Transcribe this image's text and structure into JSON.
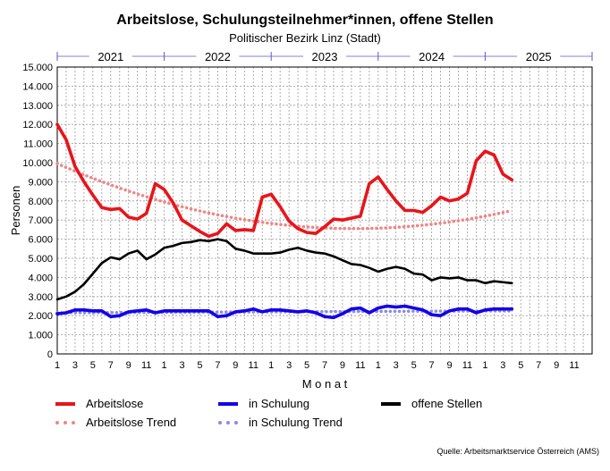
{
  "chart_data": {
    "type": "line",
    "title": "Arbeitslose, Schulungsteilnehmer*innen, offene Stellen",
    "subtitle": "Politischer Bezirk Linz (Stadt)",
    "xlabel": "M o n a t",
    "ylabel": "Personen",
    "ylim": [
      0,
      15000
    ],
    "yticks": [
      "0",
      "1.000",
      "2.000",
      "3.000",
      "4.000",
      "5.000",
      "6.000",
      "7.000",
      "8.000",
      "9.000",
      "10.000",
      "11.000",
      "12.000",
      "13.000",
      "14.000",
      "15.000"
    ],
    "year_labels": [
      "2021",
      "2022",
      "2023",
      "2024",
      "2025"
    ],
    "xtick_labels": [
      "1",
      "3",
      "5",
      "7",
      "9",
      "11",
      "1",
      "3",
      "5",
      "7",
      "9",
      "11",
      "1",
      "3",
      "5",
      "7",
      "9",
      "11",
      "1",
      "3",
      "5",
      "7",
      "9",
      "11",
      "1",
      "3",
      "5",
      "7",
      "9",
      "11"
    ],
    "months_total": 60,
    "series": [
      {
        "name": "Arbeitslose",
        "color": "#e8141b",
        "style": "solid",
        "values": [
          12000,
          11200,
          9800,
          9000,
          8300,
          7650,
          7550,
          7600,
          7150,
          7050,
          7350,
          8900,
          8600,
          7900,
          7000,
          6700,
          6400,
          6150,
          6300,
          6800,
          6450,
          6500,
          6450,
          8200,
          8350,
          7700,
          6950,
          6550,
          6350,
          6300,
          6650,
          7050,
          7000,
          7100,
          7200,
          8900,
          9250,
          8600,
          8000,
          7500,
          7500,
          7400,
          7750,
          8200,
          8000,
          8100,
          8400,
          10100,
          10600,
          10400,
          9400,
          9100
        ]
      },
      {
        "name": "in Schulung",
        "color": "#1400e6",
        "style": "solid",
        "values": [
          2100,
          2150,
          2300,
          2300,
          2250,
          2250,
          1950,
          2000,
          2200,
          2250,
          2300,
          2150,
          2250,
          2250,
          2250,
          2250,
          2250,
          2250,
          1950,
          2000,
          2200,
          2250,
          2350,
          2200,
          2300,
          2300,
          2250,
          2200,
          2250,
          2150,
          1950,
          1900,
          2100,
          2350,
          2400,
          2150,
          2400,
          2500,
          2450,
          2500,
          2400,
          2300,
          2050,
          2000,
          2250,
          2350,
          2350,
          2150,
          2300,
          2350,
          2350,
          2350
        ]
      },
      {
        "name": "offene Stellen",
        "color": "#000000",
        "style": "solid",
        "values": [
          2850,
          3000,
          3250,
          3650,
          4200,
          4750,
          5050,
          4950,
          5250,
          5400,
          4950,
          5200,
          5550,
          5650,
          5800,
          5850,
          5950,
          5900,
          6000,
          5900,
          5500,
          5400,
          5250,
          5250,
          5250,
          5300,
          5450,
          5550,
          5400,
          5300,
          5250,
          5100,
          4900,
          4700,
          4650,
          4500,
          4300,
          4450,
          4550,
          4450,
          4200,
          4150,
          3850,
          4000,
          3950,
          4000,
          3850,
          3850,
          3700,
          3800,
          3750,
          3700
        ]
      },
      {
        "name": "Arbeitslose Trend",
        "color": "#f08585",
        "style": "dotted",
        "values": [
          9950,
          9749,
          9555,
          9366,
          9184,
          9008,
          8838,
          8674,
          8516,
          8364,
          8219,
          8079,
          7946,
          7819,
          7697,
          7582,
          7473,
          7370,
          7274,
          7183,
          7098,
          7020,
          6947,
          6881,
          6821,
          6767,
          6719,
          6677,
          6641,
          6611,
          6588,
          6570,
          6559,
          6553,
          6554,
          6561,
          6574,
          6593,
          6618,
          6649,
          6686,
          6730,
          6779,
          6835,
          6896,
          6964,
          7038,
          7118,
          7203,
          7295,
          7393,
          7497
        ]
      },
      {
        "name": "in Schulung Trend",
        "color": "#8a8ae8",
        "style": "dotted",
        "values": [
          2150,
          2152,
          2154,
          2156,
          2158,
          2160,
          2162,
          2164,
          2166,
          2168,
          2170,
          2172,
          2174,
          2176,
          2178,
          2180,
          2182,
          2184,
          2186,
          2188,
          2190,
          2192,
          2194,
          2196,
          2198,
          2200,
          2202,
          2204,
          2206,
          2208,
          2210,
          2212,
          2214,
          2216,
          2218,
          2220,
          2222,
          2224,
          2226,
          2228,
          2230,
          2232,
          2234,
          2236,
          2238,
          2240,
          2242,
          2244,
          2246,
          2248,
          2250,
          2252
        ]
      }
    ],
    "legend": [
      "Arbeitslose",
      "in Schulung",
      "offene Stellen",
      "Arbeitslose Trend",
      "in Schulung Trend"
    ],
    "source": "Quelle: Arbeitsmarktservice Österreich (AMS)"
  }
}
